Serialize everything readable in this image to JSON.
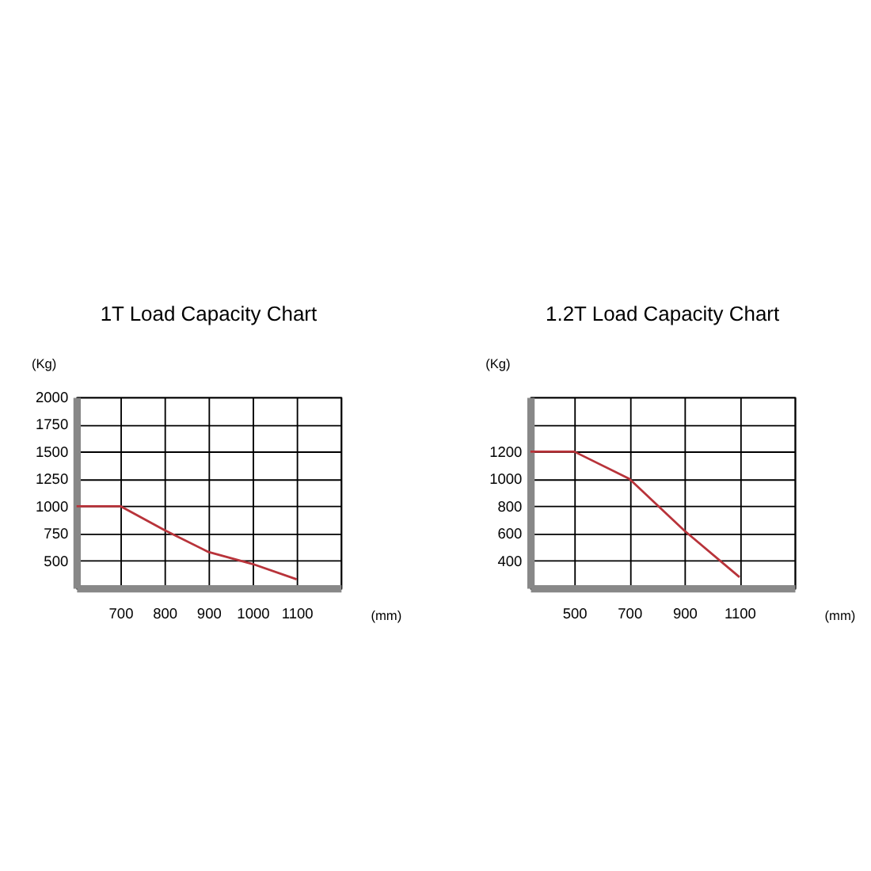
{
  "chart_data": [
    {
      "type": "line",
      "title": "1T Load Capacity Chart",
      "xlabel": "(mm)",
      "ylabel": "(Kg)",
      "x": [
        600,
        700,
        800,
        900,
        1000,
        1100
      ],
      "series": [
        {
          "color": "#b8333a",
          "values": [
            1000,
            1000,
            780,
            580,
            470,
            330
          ]
        }
      ],
      "xlim": [
        600,
        1200
      ],
      "ylim": [
        250,
        2000
      ],
      "xticks": [
        {
          "value": 600,
          "label": null
        },
        700,
        800,
        900,
        1000,
        1100,
        {
          "value": 1200,
          "label": null
        }
      ],
      "yticks": [
        {
          "value": 250,
          "label": null
        },
        500,
        750,
        1000,
        1250,
        1500,
        1750,
        2000
      ],
      "grid": true,
      "marker": "none",
      "line_style": "solid"
    },
    {
      "type": "line",
      "title": "1.2T Load Capacity Chart",
      "xlabel": "(mm)",
      "ylabel": "(Kg)",
      "x": [
        340,
        500,
        700,
        900,
        1100
      ],
      "series": [
        {
          "color": "#b8333a",
          "values": [
            1200,
            1200,
            1000,
            620,
            280
          ]
        }
      ],
      "xlim": [
        340,
        1300
      ],
      "ylim": [
        200,
        1600
      ],
      "xticks": [
        500,
        700,
        900,
        1100,
        {
          "value": 1300,
          "label": null
        }
      ],
      "yticks": [
        {
          "value": 200,
          "label": null
        },
        400,
        600,
        800,
        1000,
        1200,
        {
          "value": 1400,
          "label": null
        },
        {
          "value": 1600,
          "label": null
        }
      ],
      "grid": true,
      "marker": "none",
      "line_style": "solid"
    }
  ]
}
